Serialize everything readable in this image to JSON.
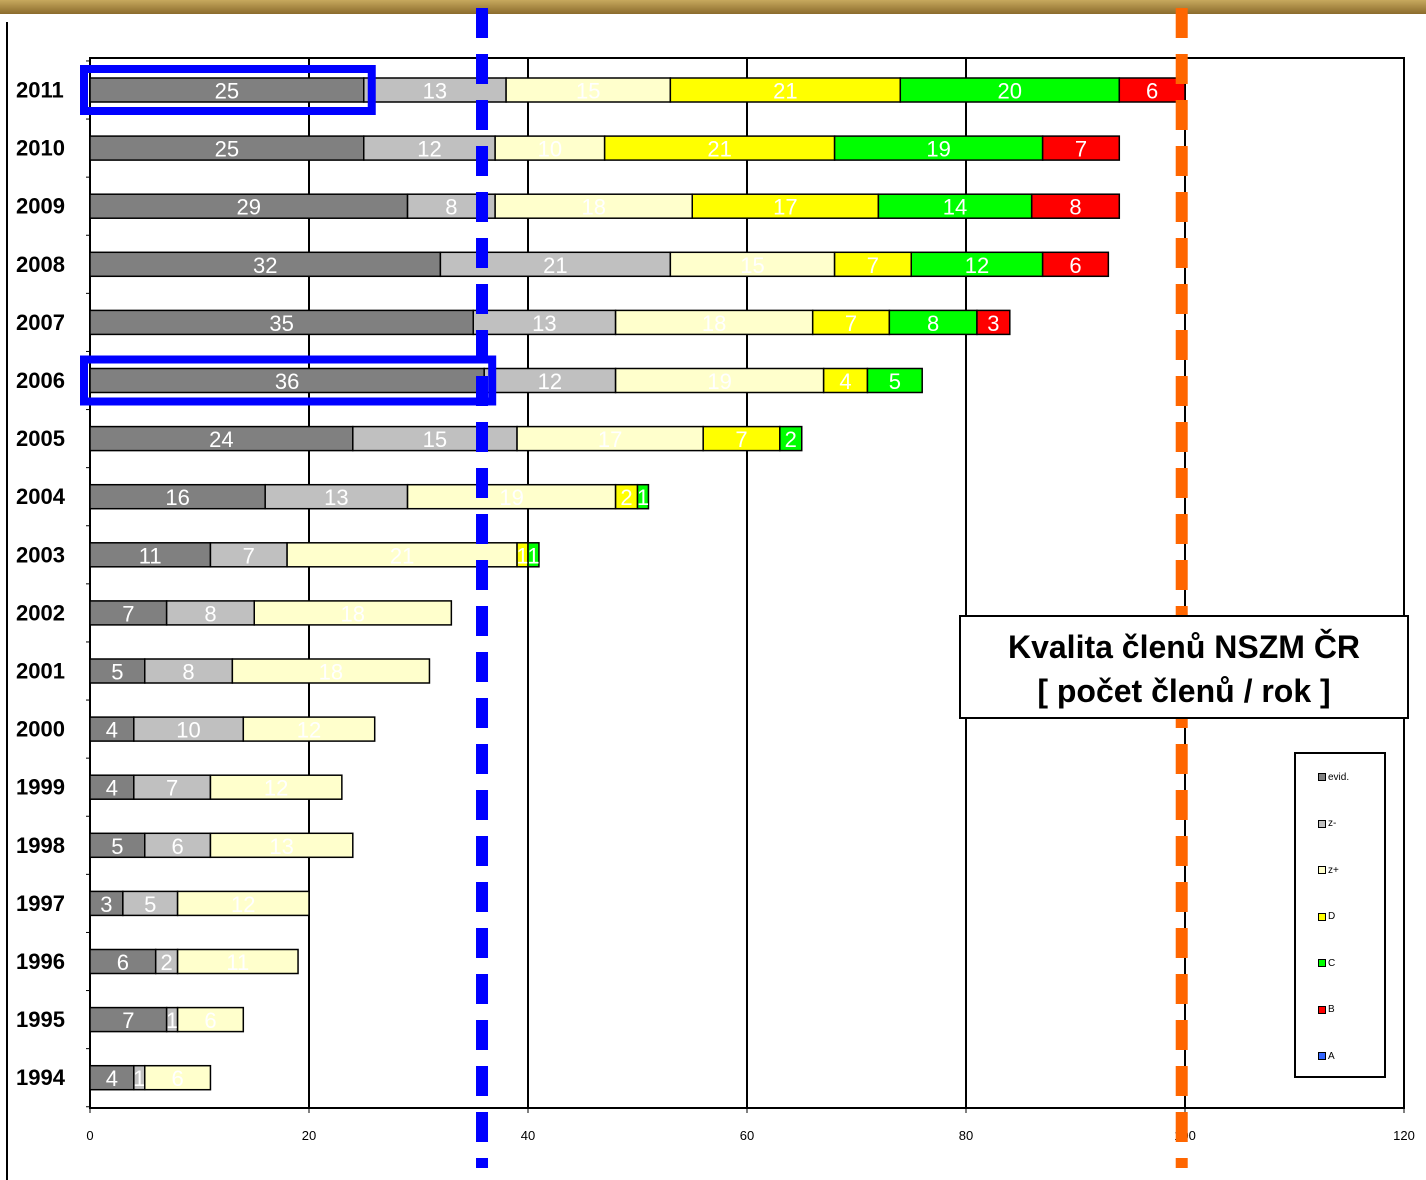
{
  "chart_data": {
    "type": "bar",
    "orientation": "horizontal",
    "stacked": true,
    "title": "Kvalita členů NSZM ČR",
    "subtitle": "[ počet členů / rok ]",
    "categories": [
      "2011",
      "2010",
      "2009",
      "2008",
      "2007",
      "2006",
      "2005",
      "2004",
      "2003",
      "2002",
      "2001",
      "2000",
      "1999",
      "1998",
      "1997",
      "1996",
      "1995",
      "1994"
    ],
    "series": [
      {
        "name": "evid.",
        "color": "#808080",
        "values": [
          25,
          25,
          29,
          32,
          35,
          36,
          24,
          16,
          11,
          7,
          5,
          4,
          4,
          5,
          3,
          6,
          7,
          4
        ]
      },
      {
        "name": "z-",
        "color": "#c0c0c0",
        "values": [
          13,
          12,
          8,
          21,
          13,
          12,
          15,
          13,
          7,
          8,
          8,
          10,
          7,
          6,
          5,
          2,
          1,
          1
        ]
      },
      {
        "name": "z+",
        "color": "#ffffcc",
        "values": [
          15,
          10,
          18,
          15,
          18,
          19,
          17,
          19,
          21,
          18,
          18,
          12,
          12,
          13,
          12,
          11,
          6,
          6
        ]
      },
      {
        "name": "D",
        "color": "#ffff00",
        "values": [
          21,
          21,
          17,
          7,
          7,
          4,
          7,
          2,
          1,
          0,
          0,
          0,
          0,
          0,
          0,
          0,
          0,
          0
        ]
      },
      {
        "name": "C",
        "color": "#00ff00",
        "values": [
          20,
          19,
          14,
          12,
          8,
          5,
          2,
          1,
          1,
          0,
          0,
          0,
          0,
          0,
          0,
          0,
          0,
          0
        ]
      },
      {
        "name": "B",
        "color": "#ff0000",
        "values": [
          6,
          7,
          8,
          6,
          3,
          0,
          0,
          0,
          0,
          0,
          0,
          0,
          0,
          0,
          0,
          0,
          0,
          0
        ]
      },
      {
        "name": "A",
        "color": "#3366ff",
        "values": [
          0,
          0,
          0,
          0,
          0,
          0,
          0,
          0,
          0,
          0,
          0,
          0,
          0,
          0,
          0,
          0,
          0,
          0
        ]
      }
    ],
    "xlim": [
      0,
      120
    ],
    "xticks": [
      0,
      20,
      40,
      60,
      80,
      100,
      120
    ],
    "grid": true,
    "legend_position": "bottom-right",
    "annotations": {
      "vertical_dashed_lines": [
        {
          "color": "#0000ff",
          "x": 35.8
        },
        {
          "color": "#ff6600",
          "x": 99.7
        }
      ],
      "highlight_boxes": [
        {
          "color": "#0000ff",
          "category": "2011",
          "x_range": [
            0,
            25
          ]
        },
        {
          "color": "#0000ff",
          "category": "2006",
          "x_range": [
            0,
            36
          ]
        }
      ]
    }
  }
}
